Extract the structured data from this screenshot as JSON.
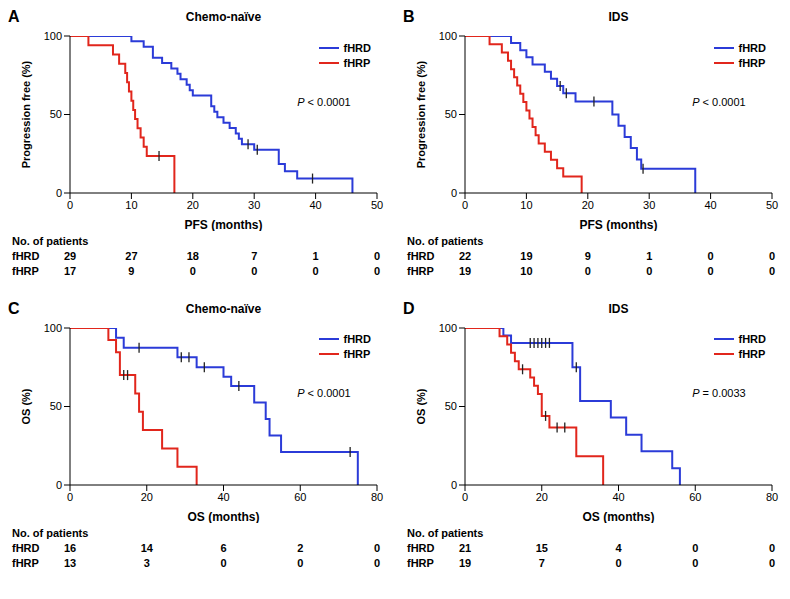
{
  "chart_data": [
    {
      "type": "step",
      "panel": "A",
      "title": "Chemo-naïve",
      "x_label": "PFS (months)",
      "y_label": "Progression free (%)",
      "annotation": "P < 0.0001",
      "legend": "upper right",
      "xlim": [
        0,
        50
      ],
      "xticks": [
        0,
        10,
        20,
        30,
        40,
        50
      ],
      "ylim": [
        0,
        100
      ],
      "yticks": [
        0,
        50,
        100
      ],
      "series": [
        {
          "name": "fHRD",
          "color": "#2b3bd8",
          "x": [
            0,
            10,
            12,
            13.5,
            15,
            16.5,
            17.5,
            18,
            19,
            19.5,
            20,
            23,
            23.5,
            24,
            25,
            26,
            27,
            27.5,
            28,
            30,
            34,
            35,
            37,
            46
          ],
          "values": [
            100,
            96.6,
            93.1,
            86.2,
            82.8,
            79.3,
            75.9,
            72.4,
            69,
            65.5,
            62.1,
            55.2,
            51.7,
            48.3,
            44.8,
            41.4,
            37.9,
            34.5,
            31,
            27.6,
            18.4,
            13.8,
            9.2,
            0
          ],
          "censored_x": [
            29,
            30.5,
            39.5
          ],
          "censored_values": [
            31,
            27.6,
            9.2
          ]
        },
        {
          "name": "fHRP",
          "color": "#e1261c",
          "x": [
            0,
            3,
            7,
            8,
            9,
            9.3,
            9.6,
            10,
            10.3,
            10.6,
            11,
            11.5,
            12,
            12.5,
            17
          ],
          "values": [
            100,
            94.1,
            88.2,
            82.4,
            76.5,
            70.6,
            64.7,
            58.8,
            52.9,
            47.1,
            41.2,
            35.3,
            29.4,
            23.5,
            0
          ],
          "censored_x": [
            14.5
          ],
          "censored_values": [
            23.5
          ]
        }
      ],
      "risk_table": {
        "title": "No. of patients",
        "times": [
          0,
          10,
          20,
          30,
          40,
          50
        ],
        "rows": [
          {
            "name": "fHRD",
            "values": [
              29,
              27,
              18,
              7,
              1,
              0
            ]
          },
          {
            "name": "fHRP",
            "values": [
              17,
              9,
              0,
              0,
              0,
              0
            ]
          }
        ]
      }
    },
    {
      "type": "step",
      "panel": "B",
      "title": "IDS",
      "x_label": "PFS (months)",
      "y_label": "Progression free (%)",
      "annotation": "P < 0.0001",
      "legend": "upper right",
      "xlim": [
        0,
        50
      ],
      "xticks": [
        0,
        10,
        20,
        30,
        40,
        50
      ],
      "ylim": [
        0,
        100
      ],
      "yticks": [
        0,
        50,
        100
      ],
      "series": [
        {
          "name": "fHRD",
          "color": "#2b3bd8",
          "x": [
            0,
            7.5,
            9,
            10,
            11,
            13,
            14,
            15,
            16,
            18,
            24,
            25,
            26,
            27,
            28,
            28.7,
            37.5
          ],
          "values": [
            100,
            95.5,
            90.9,
            86.4,
            81.8,
            77.3,
            72.7,
            68.2,
            63.6,
            58.3,
            50,
            42.9,
            35.7,
            28.6,
            21.4,
            15.5,
            0
          ],
          "censored_x": [
            15.5,
            16.5,
            21,
            29
          ],
          "censored_values": [
            68.2,
            63.6,
            58.3,
            15.5
          ]
        },
        {
          "name": "fHRP",
          "color": "#e1261c",
          "x": [
            0,
            4,
            6,
            7,
            7.5,
            8,
            8.5,
            9,
            9.5,
            10,
            10.5,
            11,
            11.5,
            12,
            13,
            14,
            15,
            16,
            19
          ],
          "values": [
            100,
            94.7,
            89.5,
            84.2,
            78.9,
            73.7,
            68.4,
            63.2,
            57.9,
            52.6,
            47.4,
            42.1,
            36.8,
            31.6,
            26.3,
            21.1,
            15.8,
            10.5,
            0
          ],
          "censored_x": [],
          "censored_values": []
        }
      ],
      "risk_table": {
        "title": "No. of patients",
        "times": [
          0,
          10,
          20,
          30,
          40,
          50
        ],
        "rows": [
          {
            "name": "fHRD",
            "values": [
              22,
              19,
              9,
              1,
              0,
              0
            ]
          },
          {
            "name": "fHRP",
            "values": [
              19,
              10,
              0,
              0,
              0,
              0
            ]
          }
        ]
      }
    },
    {
      "type": "step",
      "panel": "C",
      "title": "Chemo-naïve",
      "x_label": "OS (months)",
      "y_label": "OS (%)",
      "annotation": "P < 0.0001",
      "legend": "upper right",
      "xlim": [
        0,
        80
      ],
      "xticks": [
        0,
        20,
        40,
        60,
        80
      ],
      "ylim": [
        0,
        100
      ],
      "yticks": [
        0,
        50,
        100
      ],
      "series": [
        {
          "name": "fHRD",
          "color": "#2b3bd8",
          "x": [
            0,
            12,
            14,
            28,
            33,
            40,
            42,
            48,
            51,
            52,
            55,
            75
          ],
          "values": [
            100,
            93.8,
            87.5,
            81.3,
            75,
            69,
            63,
            52.5,
            42,
            31.5,
            21,
            0
          ],
          "censored_x": [
            18,
            29,
            31,
            35,
            44,
            73
          ],
          "censored_values": [
            87.5,
            81.3,
            81.3,
            75,
            63,
            21
          ]
        },
        {
          "name": "fHRP",
          "color": "#e1261c",
          "x": [
            0,
            10,
            12,
            13,
            17,
            18,
            19,
            24,
            28,
            33
          ],
          "values": [
            100,
            92.3,
            84.6,
            70,
            58.3,
            46.7,
            35,
            23.3,
            11.7,
            0
          ],
          "censored_x": [
            14,
            15
          ],
          "censored_values": [
            70,
            70
          ]
        }
      ],
      "risk_table": {
        "title": "No. of patients",
        "times": [
          0,
          20,
          40,
          60,
          80
        ],
        "rows": [
          {
            "name": "fHRD",
            "values": [
              16,
              14,
              6,
              2,
              0
            ]
          },
          {
            "name": "fHRP",
            "values": [
              13,
              3,
              0,
              0,
              0
            ]
          }
        ]
      }
    },
    {
      "type": "step",
      "panel": "D",
      "title": "IDS",
      "x_label": "OS (months)",
      "y_label": "OS (%)",
      "annotation": "P = 0.0033",
      "legend": "upper right",
      "xlim": [
        0,
        80
      ],
      "xticks": [
        0,
        20,
        40,
        60,
        80
      ],
      "ylim": [
        0,
        100
      ],
      "yticks": [
        0,
        50,
        100
      ],
      "series": [
        {
          "name": "fHRD",
          "color": "#2b3bd8",
          "x": [
            0,
            10,
            12,
            28,
            30,
            38,
            42,
            46,
            54,
            56
          ],
          "values": [
            100,
            95.2,
            90.5,
            75,
            53.5,
            43,
            32,
            21.5,
            10.7,
            0
          ],
          "censored_x": [
            17,
            18,
            19,
            20,
            21,
            22,
            29
          ],
          "censored_values": [
            90.5,
            90.5,
            90.5,
            90.5,
            90.5,
            90.5,
            75
          ]
        },
        {
          "name": "fHRP",
          "color": "#e1261c",
          "x": [
            0,
            9,
            11,
            12,
            13,
            14,
            17,
            18,
            19,
            20,
            22,
            29,
            36
          ],
          "values": [
            100,
            94.7,
            89.5,
            84.2,
            78.9,
            73.7,
            68.4,
            63.2,
            57.9,
            44,
            36.7,
            18.3,
            0
          ],
          "censored_x": [
            15,
            21,
            24,
            26
          ],
          "censored_values": [
            73.7,
            44,
            36.7,
            36.7
          ]
        }
      ],
      "risk_table": {
        "title": "No. of patients",
        "times": [
          0,
          20,
          40,
          60,
          80
        ],
        "rows": [
          {
            "name": "fHRD",
            "values": [
              21,
              15,
              4,
              0,
              0
            ]
          },
          {
            "name": "fHRP",
            "values": [
              19,
              7,
              0,
              0,
              0
            ]
          }
        ]
      }
    }
  ]
}
